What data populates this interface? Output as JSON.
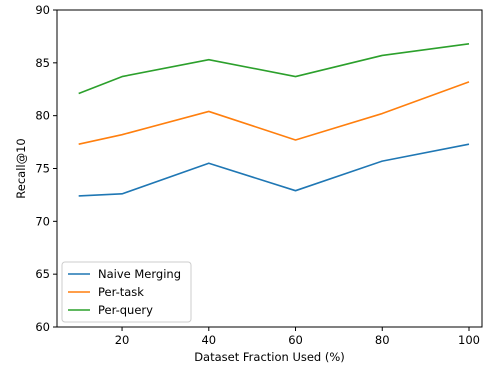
{
  "chart_data": {
    "type": "line",
    "title": "",
    "xlabel": "Dataset Fraction Used (%)",
    "ylabel": "Recall@10",
    "x": [
      10,
      20,
      40,
      60,
      80,
      100
    ],
    "xlim": [
      5,
      103
    ],
    "ylim": [
      60,
      90
    ],
    "xticks": [
      20,
      40,
      60,
      80,
      100
    ],
    "yticks": [
      60,
      65,
      70,
      75,
      80,
      85,
      90
    ],
    "grid": false,
    "legend_position": "lower-left",
    "series": [
      {
        "name": "Naive Merging",
        "color": "#1f77b4",
        "values": [
          72.4,
          72.6,
          75.5,
          72.9,
          75.7,
          77.3
        ]
      },
      {
        "name": "Per-task",
        "color": "#ff7f0e",
        "values": [
          77.3,
          78.2,
          80.4,
          77.7,
          80.2,
          83.2
        ]
      },
      {
        "name": "Per-query",
        "color": "#2ca02c",
        "values": [
          82.1,
          83.7,
          85.3,
          83.7,
          85.7,
          86.8
        ]
      }
    ]
  }
}
